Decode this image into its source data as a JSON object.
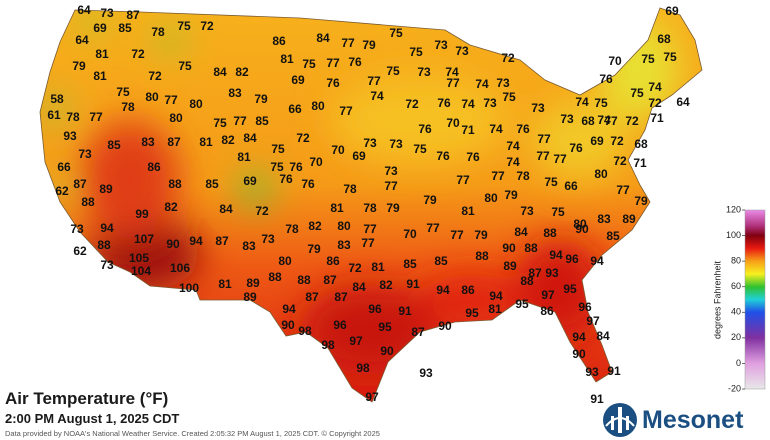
{
  "title": "Air Temperature (°F)",
  "timestamp": "2:00 PM August 1, 2025 CDT",
  "credit": "Data provided by NOAA's National Weather Service. Created 2:05:32 PM August 1, 2025 CDT. © Copyright 2025",
  "logo": "Mesonet",
  "colorbar": {
    "label": "degrees Fahrenheit",
    "range": [
      -20,
      120
    ],
    "ticks": [
      120,
      100,
      80,
      60,
      40,
      20,
      0,
      -20
    ]
  },
  "stations": [
    64,
    73,
    87,
    69,
    85,
    78,
    75,
    72,
    64,
    86,
    84,
    77,
    79,
    75,
    75,
    73,
    73,
    72,
    69,
    68,
    75,
    79,
    81,
    72,
    75,
    84,
    82,
    81,
    75,
    77,
    76,
    75,
    73,
    74,
    73,
    70,
    75,
    76,
    81,
    72,
    58,
    75,
    80,
    77,
    80,
    83,
    79,
    69,
    76,
    77,
    77,
    74,
    75,
    73,
    75,
    74,
    72,
    64,
    61,
    78,
    77,
    78,
    80,
    75,
    77,
    85,
    66,
    80,
    77,
    74,
    72,
    76,
    74,
    73,
    74,
    75,
    74,
    73,
    68,
    77,
    72,
    71,
    93,
    85,
    83,
    87,
    81,
    82,
    84,
    72,
    75,
    70,
    69,
    73,
    73,
    75,
    76,
    70,
    71,
    74,
    76,
    77,
    77,
    74,
    74,
    76,
    76,
    77,
    76,
    69,
    72,
    68,
    72,
    71,
    73,
    86,
    81,
    75,
    76,
    70,
    66,
    78,
    73,
    77,
    77,
    77,
    78,
    75,
    66,
    80,
    77,
    62,
    87,
    89,
    88,
    85,
    69,
    76,
    76,
    80,
    79,
    73,
    79,
    88,
    99,
    82,
    84,
    72,
    81,
    78,
    79,
    79,
    81,
    75,
    80,
    83,
    89,
    73,
    94,
    107,
    90,
    94,
    87,
    78,
    82,
    80,
    77,
    70,
    77,
    77,
    79,
    88,
    90,
    85,
    62,
    88,
    83,
    73,
    79,
    83,
    77,
    90,
    88,
    84,
    94,
    96,
    94,
    105,
    73,
    104,
    106,
    80,
    86,
    72,
    81,
    85,
    85,
    88,
    89,
    87,
    93,
    88,
    100,
    81,
    88,
    89,
    88,
    87,
    84,
    82,
    91,
    94,
    86,
    97,
    95,
    89,
    94,
    87,
    87,
    96,
    91,
    94,
    81,
    95,
    96,
    90,
    98,
    96,
    95,
    87,
    90,
    95,
    86,
    97,
    98,
    97,
    90,
    84,
    94,
    90,
    98,
    93,
    93,
    91,
    97,
    91
  ]
}
